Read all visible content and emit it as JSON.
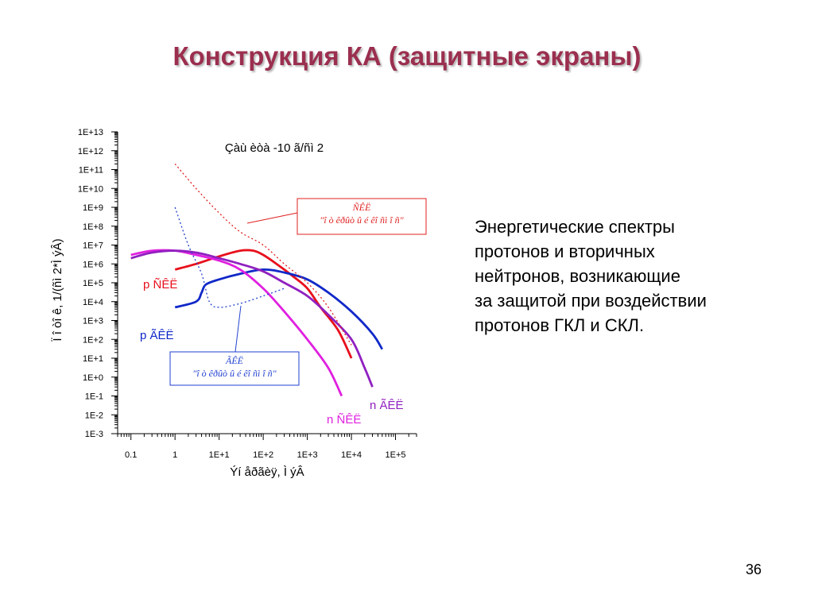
{
  "slide": {
    "title": "Конструкция КА (защитные экраны)",
    "side_text": [
      "Энергетические спектры",
      "протонов и вторичных",
      "нейтронов, возникающие",
      "за защитой при воздействии",
      "протонов ГКЛ и СКЛ."
    ],
    "page_number": "36"
  },
  "chart_data": {
    "type": "line",
    "title": "Çàù èòà -10 ã/ñì 2",
    "xlabel": "Ýí åðãèÿ, Ì ýÂ",
    "ylabel": "Ï î òî ê, 1/(ñì 2*Ì ýÂ)",
    "x_scale": "log",
    "y_scale": "log",
    "xlim": [
      0.05,
      300000
    ],
    "ylim": [
      0.001,
      10000000000000
    ],
    "x_tick_labels": [
      "0.1",
      "1",
      "1E+1",
      "1E+2",
      "1E+3",
      "1E+4",
      "1E+5"
    ],
    "y_tick_labels": [
      "1E+13",
      "1E+12",
      "1E+11",
      "1E+10",
      "1E+9",
      "1E+8",
      "1E+7",
      "1E+6",
      "1E+5",
      "1E+4",
      "1E+3",
      "1E+2",
      "1E+1",
      "1E+0",
      "1E-1",
      "1E-2",
      "1E-3"
    ],
    "grid": false,
    "series": [
      {
        "name": "p ÑÊË",
        "color": "#e8101c",
        "style": "solid",
        "points": [
          [
            1,
            500000
          ],
          [
            3,
            1000000
          ],
          [
            10,
            2500000
          ],
          [
            30,
            5000000
          ],
          [
            60,
            5000000
          ],
          [
            100,
            3000000
          ],
          [
            200,
            1000000
          ],
          [
            500,
            200000
          ],
          [
            1000,
            50000
          ],
          [
            2000,
            5000
          ],
          [
            5000,
            300
          ],
          [
            10000,
            10
          ]
        ]
      },
      {
        "name": "p ÃÊË",
        "color": "#1028c8",
        "style": "solid",
        "points": [
          [
            1,
            5000
          ],
          [
            3,
            10000
          ],
          [
            4,
            30000
          ],
          [
            5,
            80000
          ],
          [
            10,
            150000
          ],
          [
            30,
            300000
          ],
          [
            100,
            500000
          ],
          [
            300,
            350000
          ],
          [
            1000,
            150000
          ],
          [
            3000,
            30000
          ],
          [
            10000,
            3000
          ],
          [
            30000,
            200
          ],
          [
            50000,
            30
          ]
        ]
      },
      {
        "name": "n ÑÊË",
        "color": "#e020e0",
        "style": "solid",
        "points": [
          [
            0.1,
            3000000
          ],
          [
            0.3,
            5000000
          ],
          [
            1,
            5000000
          ],
          [
            3,
            3000000
          ],
          [
            10,
            1500000
          ],
          [
            30,
            500000
          ],
          [
            100,
            50000
          ],
          [
            300,
            3000
          ],
          [
            1000,
            100
          ],
          [
            3000,
            3
          ],
          [
            6000,
            0.1
          ]
        ]
      },
      {
        "name": "n ÃÊË",
        "color": "#9020c0",
        "style": "solid",
        "points": [
          [
            0.1,
            2000000
          ],
          [
            0.3,
            4000000
          ],
          [
            1,
            5000000
          ],
          [
            3,
            4000000
          ],
          [
            10,
            2000000
          ],
          [
            30,
            1000000
          ],
          [
            100,
            400000
          ],
          [
            300,
            100000
          ],
          [
            1000,
            20000
          ],
          [
            3000,
            2000
          ],
          [
            10000,
            100
          ],
          [
            20000,
            3
          ],
          [
            30000,
            0.3
          ]
        ]
      },
      {
        "name": "ÑÊË \"î ò êðûò û é êî ñì î ñ\"",
        "color": "#e02020",
        "style": "dotted",
        "points": [
          [
            1,
            200000000000
          ],
          [
            3,
            10000000000
          ],
          [
            10,
            500000000
          ],
          [
            30,
            50000000
          ],
          [
            100,
            10000000
          ],
          [
            300,
            1000000
          ],
          [
            1000,
            100000
          ],
          [
            3000,
            5000
          ],
          [
            10000,
            50
          ]
        ]
      },
      {
        "name": "ÃÊË \"î ò êðûò û é êî ñì î ñ\"",
        "color": "#2040d0",
        "style": "dotted",
        "points": [
          [
            1,
            1000000000
          ],
          [
            2,
            10000000
          ],
          [
            4,
            300000
          ],
          [
            6,
            10000
          ],
          [
            10,
            5000
          ],
          [
            30,
            8000
          ],
          [
            100,
            20000
          ],
          [
            300,
            50000
          ]
        ]
      }
    ],
    "curve_labels": [
      {
        "text": "p ÑÊË",
        "color": "#e8101c"
      },
      {
        "text": "p ÃÊË",
        "color": "#1028c8"
      },
      {
        "text": "n ÃÊË",
        "color": "#9020c0"
      },
      {
        "text": "n ÑÊË",
        "color": "#e020e0"
      }
    ],
    "annotation_boxes": [
      {
        "lines": [
          "ÑÊË",
          "\"î ò êðûò û é êî ñì î ñ\""
        ],
        "color": "#e02020"
      },
      {
        "lines": [
          "ÃÊË",
          "\"î ò êðûò û é êî ñì î ñ\""
        ],
        "color": "#2040d0"
      }
    ]
  }
}
